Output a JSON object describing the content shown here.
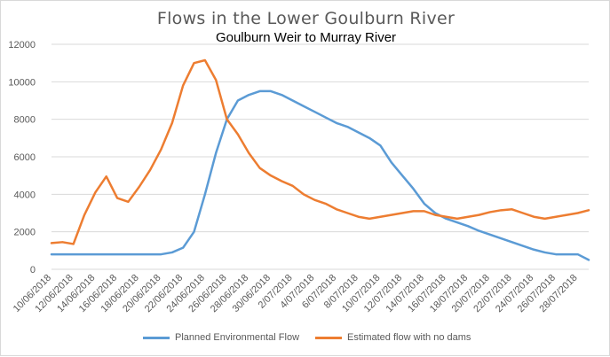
{
  "chart_data": {
    "type": "line",
    "title": "Flows in the Lower Goulburn River",
    "subtitle": "Goulburn Weir to Murray River",
    "xlabel": "",
    "ylabel": "",
    "ylim": [
      0,
      12000
    ],
    "yticks": [
      0,
      2000,
      4000,
      6000,
      8000,
      10000,
      12000
    ],
    "grid": true,
    "legend_position": "bottom",
    "x": [
      "10/06/2018",
      "11/06/2018",
      "12/06/2018",
      "13/06/2018",
      "14/06/2018",
      "15/06/2018",
      "16/06/2018",
      "17/06/2018",
      "18/06/2018",
      "19/06/2018",
      "20/06/2018",
      "21/06/2018",
      "22/06/2018",
      "23/06/2018",
      "24/06/2018",
      "25/06/2018",
      "26/06/2018",
      "27/06/2018",
      "28/06/2018",
      "29/06/2018",
      "30/06/2018",
      "1/07/2018",
      "2/07/2018",
      "3/07/2018",
      "4/07/2018",
      "5/07/2018",
      "6/07/2018",
      "7/07/2018",
      "8/07/2018",
      "9/07/2018",
      "10/07/2018",
      "11/07/2018",
      "12/07/2018",
      "13/07/2018",
      "14/07/2018",
      "15/07/2018",
      "16/07/2018",
      "17/07/2018",
      "18/07/2018",
      "19/07/2018",
      "20/07/2018",
      "21/07/2018",
      "22/07/2018",
      "23/07/2018",
      "24/07/2018",
      "25/07/2018",
      "26/07/2018",
      "27/07/2018",
      "28/07/2018",
      "29/07/2018"
    ],
    "tick_labels": [
      "10/06/2018",
      "12/06/2018",
      "14/06/2018",
      "16/06/2018",
      "18/06/2018",
      "20/06/2018",
      "22/06/2018",
      "24/06/2018",
      "26/06/2018",
      "28/06/2018",
      "30/06/2018",
      "2/07/2018",
      "4/07/2018",
      "6/07/2018",
      "8/07/2018",
      "10/07/2018",
      "12/07/2018",
      "14/07/2018",
      "16/07/2018",
      "18/07/2018",
      "20/07/2018",
      "22/07/2018",
      "24/07/2018",
      "26/07/2018",
      "28/07/2018"
    ],
    "series": [
      {
        "name": "Planned Environmental Flow",
        "color": "#5b9bd5",
        "values": [
          800,
          800,
          800,
          800,
          800,
          800,
          800,
          800,
          800,
          800,
          800,
          900,
          1150,
          2000,
          4000,
          6200,
          8000,
          9000,
          9300,
          9500,
          9500,
          9300,
          9000,
          8700,
          8400,
          8100,
          7800,
          7600,
          7300,
          7000,
          6600,
          5700,
          5000,
          4300,
          3500,
          3000,
          2700,
          2500,
          2300,
          2050,
          1850,
          1650,
          1450,
          1250,
          1050,
          900,
          800,
          800,
          800,
          500
        ]
      },
      {
        "name": "Estimated flow with no dams",
        "color": "#ed7d31",
        "values": [
          1400,
          1450,
          1350,
          2900,
          4100,
          4950,
          3800,
          3600,
          4400,
          5300,
          6400,
          7800,
          9800,
          11000,
          11150,
          10100,
          8000,
          7200,
          6200,
          5400,
          5000,
          4700,
          4450,
          4000,
          3700,
          3500,
          3200,
          3000,
          2800,
          2700,
          2800,
          2900,
          3000,
          3100,
          3100,
          2900,
          2800,
          2700,
          2800,
          2900,
          3050,
          3150,
          3200,
          3000,
          2800,
          2700,
          2800,
          2900,
          3000,
          3150
        ]
      }
    ]
  }
}
